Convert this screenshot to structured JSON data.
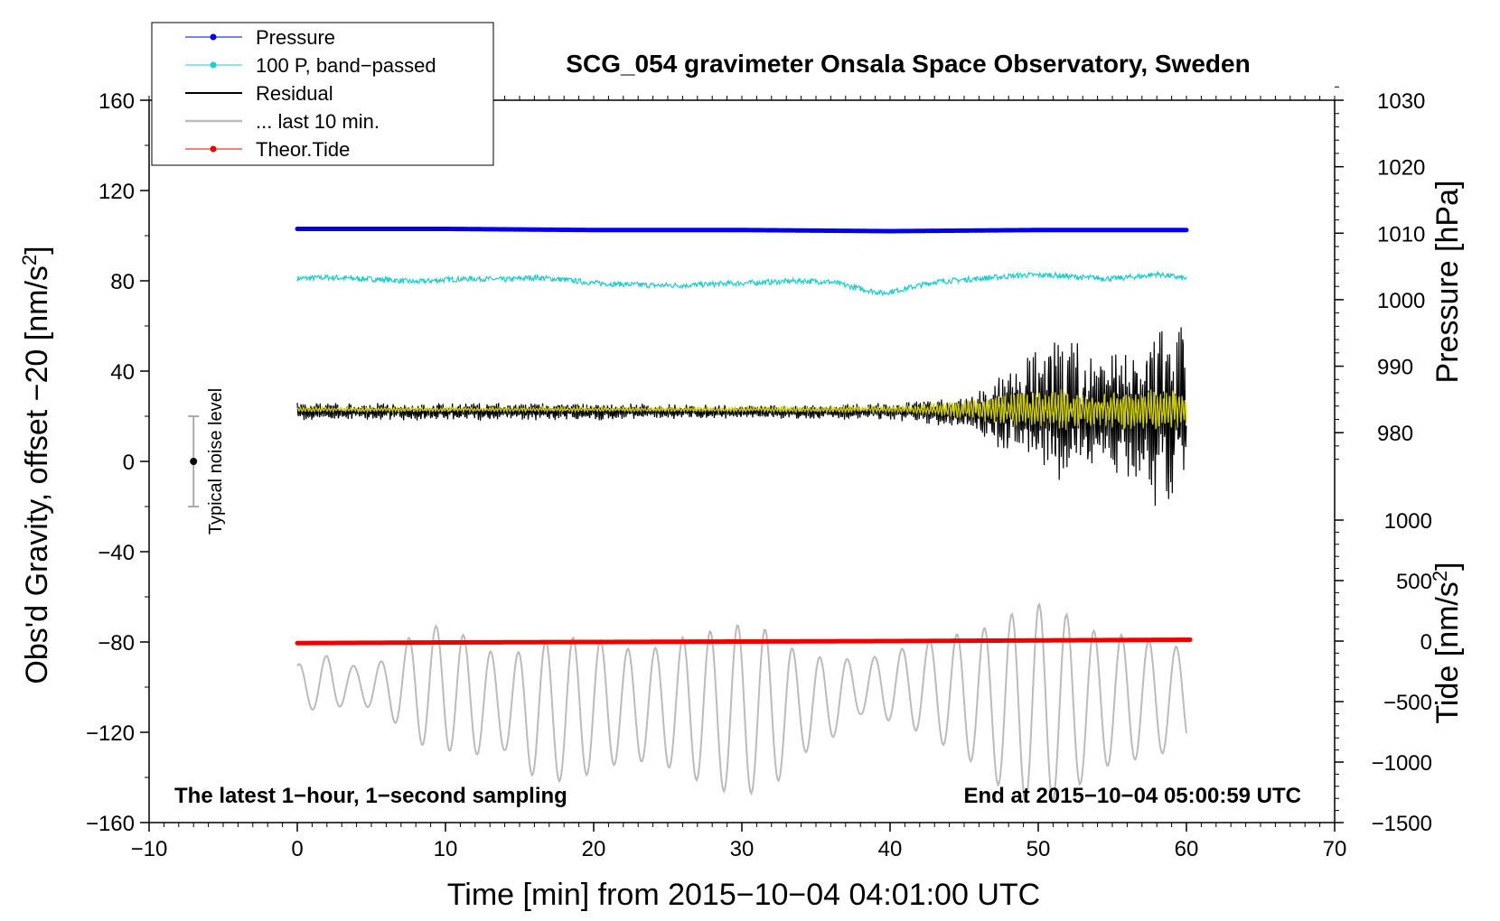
{
  "chart_data": {
    "type": "line",
    "title": "SCG_054 gravimeter Onsala Space Observatory, Sweden",
    "xlabel": "Time [min] from 2015−10−04 04:01:00 UTC",
    "ylabel_left": "Obs'd Gravity, offset −20 [nm/s",
    "ylabel_left_sup": "2",
    "ylabel_left_end": "]",
    "ylabel_right_pressure": "Pressure [hPa]",
    "ylabel_right_tide": "Tide [nm/s",
    "ylabel_right_tide_sup": "2",
    "ylabel_right_tide_end": "]",
    "xlim": [
      -10,
      70
    ],
    "ylim": [
      -160,
      160
    ],
    "x_ticks": [
      -10,
      0,
      10,
      20,
      30,
      40,
      50,
      60,
      70
    ],
    "x_tick_labels": [
      "−10",
      "0",
      "10",
      "20",
      "30",
      "40",
      "50",
      "60",
      "70"
    ],
    "y_ticks": [
      160,
      120,
      80,
      40,
      0,
      -40,
      -80,
      -120,
      -160
    ],
    "y_tick_labels": [
      "160",
      "120",
      "80",
      "40",
      "0",
      "−40",
      "−80",
      "−120",
      "−160"
    ],
    "pressure_axis": {
      "range": [
        975,
        1030
      ],
      "ticks": [
        1030,
        1020,
        1010,
        1000,
        990,
        980
      ],
      "tick_labels": [
        "1030",
        "1020",
        "1010",
        "1000",
        "990",
        "980"
      ]
    },
    "tide_axis": {
      "range": [
        -1500,
        1000
      ],
      "ticks": [
        1000,
        500,
        0,
        -500,
        -1000,
        -1500
      ],
      "tick_labels": [
        "1000",
        "500",
        "0",
        "−500",
        "−1000",
        "−1500"
      ]
    },
    "legend": [
      {
        "label": "Pressure",
        "color": "#0000ee",
        "marker": true
      },
      {
        "label": "100 P, band−passed",
        "color": "#22cccc",
        "marker": true
      },
      {
        "label": "Residual",
        "color": "#000000",
        "marker": false
      },
      {
        "label": "... last 10 min.",
        "color": "#bbbbbb",
        "marker": false
      },
      {
        "label": "Theor.Tide",
        "color": "#ee0000",
        "marker": true
      }
    ],
    "noise_bar": {
      "label": "Typical noise level",
      "x": -7,
      "center": 0,
      "low": -20,
      "high": 20
    },
    "note_left": "The latest 1−hour, 1−second sampling",
    "note_right": "End at 2015−10−04 05:00:59 UTC",
    "series": [
      {
        "name": "Pressure",
        "color": "#0000ee",
        "axis": "left",
        "style": "thick",
        "x": [
          0,
          10,
          20,
          30,
          40,
          50,
          60
        ],
        "y": [
          103,
          103,
          102.5,
          102.5,
          102,
          102.5,
          102.5
        ]
      },
      {
        "name": "100 P, band-passed",
        "color": "#22cccc",
        "axis": "left",
        "style": "noisy",
        "noise": 1.2,
        "x": [
          0,
          2,
          4,
          6,
          8,
          10,
          12,
          14,
          16,
          18,
          20,
          22,
          24,
          26,
          28,
          30,
          32,
          34,
          36,
          38,
          39.5,
          41,
          43,
          45,
          47,
          49,
          51,
          53,
          55,
          57,
          58,
          60
        ],
        "y": [
          81,
          81.5,
          81,
          80.5,
          79.5,
          80.5,
          81,
          80.5,
          81.5,
          80.5,
          79,
          78.5,
          78,
          78,
          78.5,
          79,
          79.5,
          80,
          79.5,
          76.5,
          74.5,
          76.5,
          79.5,
          80.5,
          81.5,
          82.5,
          82.5,
          81.5,
          81,
          82,
          83,
          81
        ]
      },
      {
        "name": "Residual",
        "color": "#000000",
        "axis": "left",
        "style": "oscillating",
        "x": [
          0,
          10,
          20,
          30,
          40,
          43,
          46,
          48,
          50,
          52,
          54,
          56,
          58,
          60
        ],
        "center": [
          22,
          22,
          22,
          22,
          22,
          22,
          22,
          22,
          22,
          22,
          22,
          22,
          22,
          22
        ],
        "amplitude": [
          4,
          4,
          4,
          3,
          4,
          6,
          10,
          20,
          28,
          35,
          25,
          30,
          45,
          40
        ]
      },
      {
        "name": "Residual (smoothed)",
        "color": "#cccc00",
        "axis": "left",
        "style": "oscillating",
        "x": [
          0,
          10,
          20,
          30,
          40,
          43,
          46,
          48,
          50,
          52,
          54,
          56,
          58,
          60
        ],
        "center": [
          23,
          23,
          23,
          23,
          23,
          23,
          23,
          23,
          23,
          23,
          23,
          23,
          23,
          23
        ],
        "amplitude": [
          1,
          1,
          1,
          1,
          1.5,
          3,
          5,
          7,
          8,
          10,
          8,
          9,
          10,
          8
        ]
      },
      {
        "name": "... last 10 min.",
        "color": "#bbbbbb",
        "axis": "left",
        "style": "wave",
        "x": [
          0,
          2,
          4,
          6,
          8,
          10,
          12,
          14,
          16,
          18,
          20,
          22,
          24,
          26,
          28,
          30,
          32,
          34,
          36,
          38,
          40,
          42,
          44,
          46,
          48,
          50,
          52,
          54,
          56,
          58,
          60
        ],
        "center": [
          -100,
          -98,
          -99,
          -100,
          -100,
          -100,
          -105,
          -108,
          -110,
          -110,
          -108,
          -108,
          -108,
          -108,
          -110,
          -110,
          -110,
          -108,
          -105,
          -100,
          -100,
          -100,
          -102,
          -105,
          -108,
          -108,
          -108,
          -106,
          -105,
          -105,
          -105
        ],
        "amplitude": [
          10,
          12,
          8,
          12,
          25,
          28,
          25,
          20,
          30,
          32,
          30,
          25,
          25,
          30,
          35,
          38,
          35,
          22,
          18,
          12,
          15,
          20,
          25,
          30,
          40,
          45,
          40,
          30,
          28,
          25,
          22
        ]
      },
      {
        "name": "Theor.Tide",
        "color": "#ee0000",
        "axis": "left",
        "style": "thick",
        "x": [
          0,
          10,
          20,
          30,
          40,
          50,
          60.3
        ],
        "y": [
          -80.5,
          -80.2,
          -80,
          -79.8,
          -79.6,
          -79.3,
          -79
        ]
      }
    ]
  }
}
